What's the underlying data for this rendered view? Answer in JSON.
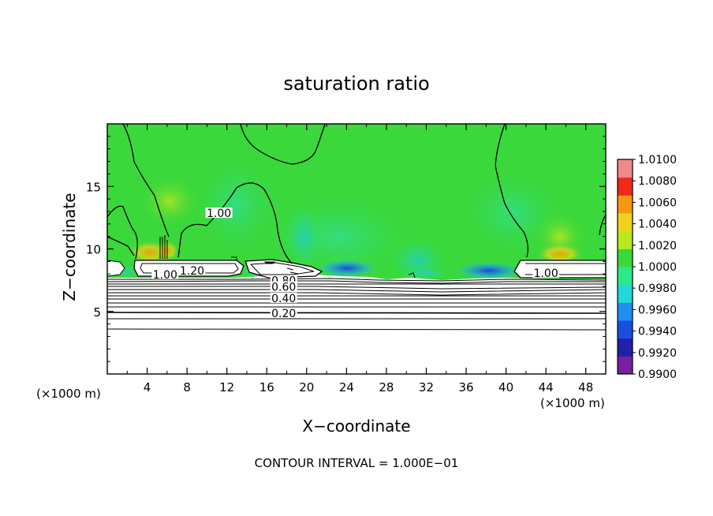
{
  "chart_data": {
    "type": "heatmap",
    "title": "saturation ratio",
    "xlabel": "X−coordinate",
    "ylabel": "Z−coordinate",
    "x_unit_left": "(×1000 m)",
    "x_unit_right": "(×1000 m)",
    "footer": "CONTOUR INTERVAL = 1.000E−01",
    "xlim": [
      0,
      50
    ],
    "ylim": [
      0,
      20
    ],
    "x_ticks": [
      {
        "value": 4,
        "label": "4"
      },
      {
        "value": 8,
        "label": "8"
      },
      {
        "value": 12,
        "label": "12"
      },
      {
        "value": 16,
        "label": "16"
      },
      {
        "value": 20,
        "label": "20"
      },
      {
        "value": 24,
        "label": "24"
      },
      {
        "value": 28,
        "label": "28"
      },
      {
        "value": 32,
        "label": "32"
      },
      {
        "value": 36,
        "label": "36"
      },
      {
        "value": 40,
        "label": "40"
      },
      {
        "value": 44,
        "label": "44"
      },
      {
        "value": 48,
        "label": "48"
      }
    ],
    "y_ticks": [
      {
        "value": 5,
        "label": "5"
      },
      {
        "value": 10,
        "label": "10"
      },
      {
        "value": 15,
        "label": "15"
      }
    ],
    "colorbar": {
      "min": 0.99,
      "max": 1.01,
      "labels": [
        "1.0100",
        "1.0080",
        "1.0060",
        "1.0040",
        "1.0020",
        "1.0000",
        "0.9980",
        "0.9960",
        "0.9940",
        "0.9920",
        "0.9900"
      ],
      "colors": [
        "#7a1fa0",
        "#2020a8",
        "#1a4ee0",
        "#1e8ef0",
        "#22d8d8",
        "#2ee88a",
        "#3ad83a",
        "#b8e81e",
        "#f0d21a",
        "#f59a10",
        "#ef2a1a",
        "#f08a8a"
      ]
    },
    "contour_labels": [
      {
        "x": 5.8,
        "y": 7.9,
        "text": "1.00"
      },
      {
        "x": 8.5,
        "y": 8.2,
        "text": "1.20"
      },
      {
        "x": 11.2,
        "y": 12.8,
        "text": "1.00"
      },
      {
        "x": 17.7,
        "y": 7.4,
        "text": "0.80"
      },
      {
        "x": 17.7,
        "y": 6.9,
        "text": "0.60"
      },
      {
        "x": 17.7,
        "y": 6.0,
        "text": "0.40"
      },
      {
        "x": 17.7,
        "y": 4.8,
        "text": "0.20"
      },
      {
        "x": 44.0,
        "y": 8.0,
        "text": "1.00"
      }
    ]
  }
}
